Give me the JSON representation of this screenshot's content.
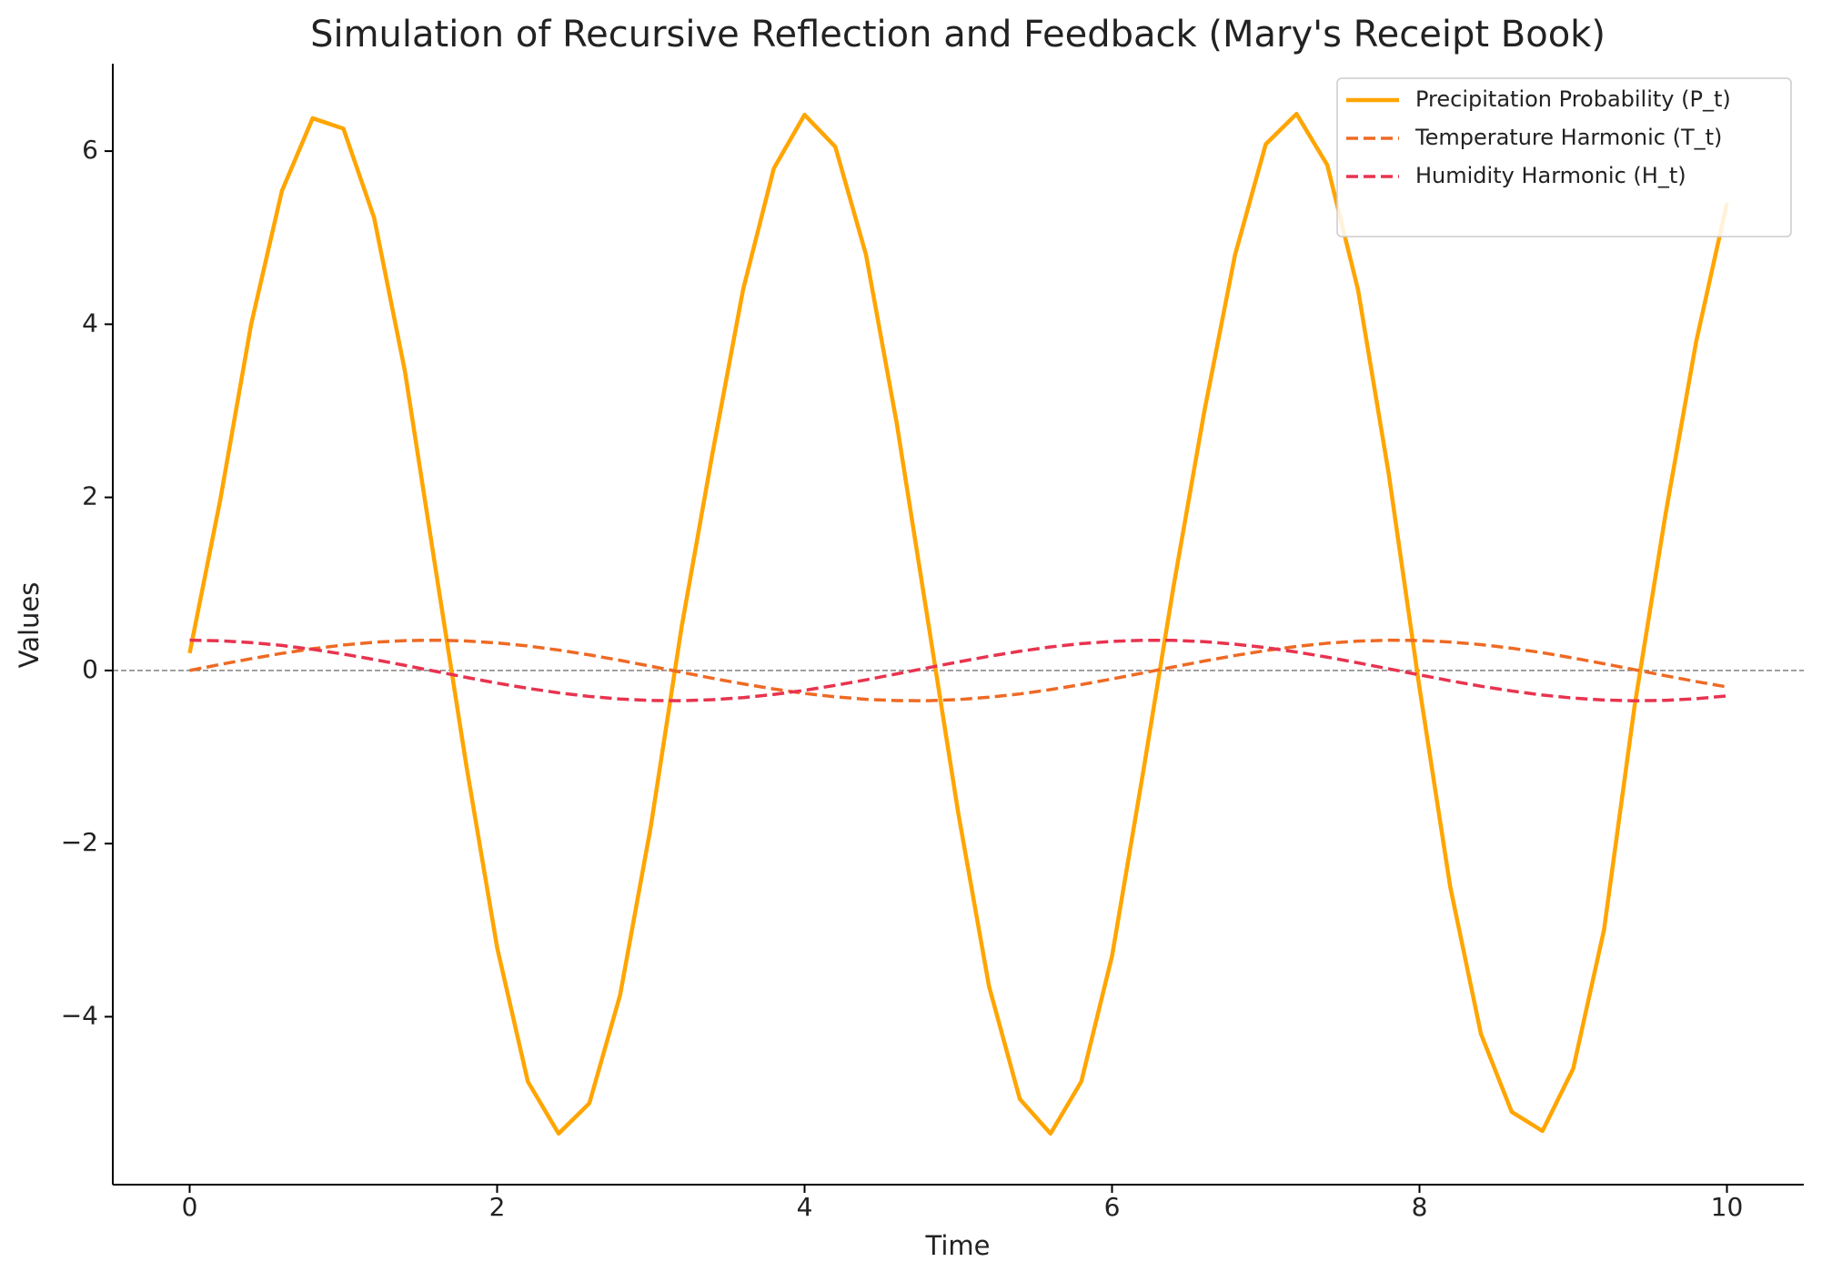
{
  "chart_data": {
    "type": "line",
    "title": "Simulation of Recursive Reflection and Feedback (Mary's Receipt Book)",
    "xlabel": "Time",
    "ylabel": "Values",
    "x": [
      0,
      0.2,
      0.4,
      0.6,
      0.8,
      1.0,
      1.2,
      1.4,
      1.6,
      1.8,
      2.0,
      2.2,
      2.4,
      2.6,
      2.8,
      3.0,
      3.2,
      3.4,
      3.6,
      3.8,
      4.0,
      4.2,
      4.4,
      4.6,
      4.8,
      5.0,
      5.2,
      5.4,
      5.6,
      5.8,
      6.0,
      6.2,
      6.4,
      6.6,
      6.8,
      7.0,
      7.2,
      7.4,
      7.6,
      7.8,
      8.0,
      8.2,
      8.4,
      8.6,
      8.8,
      9.0,
      9.2,
      9.4,
      9.6,
      9.8,
      10.0
    ],
    "series": [
      {
        "name": "Precipitation Probability (P_t)",
        "color": "#FFA500",
        "linestyle": "solid",
        "values": [
          0.2,
          1.98,
          4.0,
          5.54,
          6.38,
          6.26,
          5.23,
          3.46,
          1.17,
          -1.1,
          -3.2,
          -4.75,
          -5.35,
          -5.0,
          -3.75,
          -1.8,
          0.5,
          2.5,
          4.4,
          5.8,
          6.42,
          6.05,
          4.8,
          2.85,
          0.6,
          -1.65,
          -3.65,
          -4.95,
          -5.35,
          -4.75,
          -3.3,
          -1.2,
          0.97,
          2.99,
          4.8,
          6.08,
          6.43,
          5.84,
          4.4,
          2.27,
          -0.2,
          -2.5,
          -4.2,
          -5.1,
          -5.32,
          -4.6,
          -3.0,
          -0.4,
          1.8,
          3.8,
          5.4
        ]
      },
      {
        "name": "Temperature Harmonic (T_t)",
        "color": "#EE6A24",
        "linestyle": "dashed",
        "values": [
          0,
          0.07,
          0.136,
          0.198,
          0.251,
          0.294,
          0.326,
          0.345,
          0.35,
          0.341,
          0.318,
          0.283,
          0.236,
          0.18,
          0.117,
          0.049,
          -0.02,
          -0.09,
          -0.155,
          -0.214,
          -0.265,
          -0.305,
          -0.333,
          -0.348,
          -0.349,
          -0.336,
          -0.309,
          -0.271,
          -0.221,
          -0.163,
          -0.098,
          -0.029,
          0.041,
          0.109,
          0.173,
          0.23,
          0.278,
          0.315,
          0.339,
          0.35,
          0.346,
          0.329,
          0.299,
          0.257,
          0.205,
          0.144,
          0.078,
          0.009,
          -0.061,
          -0.128,
          -0.19
        ]
      },
      {
        "name": "Humidity Harmonic (H_t)",
        "color": "#E8334F",
        "linestyle": "dashed",
        "values": [
          0.35,
          0.343,
          0.322,
          0.289,
          0.244,
          0.189,
          0.127,
          0.059,
          -0.01,
          -0.08,
          -0.146,
          -0.206,
          -0.258,
          -0.3,
          -0.33,
          -0.347,
          -0.349,
          -0.338,
          -0.314,
          -0.277,
          -0.229,
          -0.172,
          -0.108,
          -0.039,
          0.03,
          0.099,
          0.164,
          0.222,
          0.272,
          0.31,
          0.336,
          0.349,
          0.348,
          0.333,
          0.304,
          0.264,
          0.213,
          0.154,
          0.088,
          0.019,
          -0.051,
          -0.119,
          -0.182,
          -0.237,
          -0.284,
          -0.319,
          -0.341,
          -0.35,
          -0.345,
          -0.326,
          -0.294
        ]
      }
    ],
    "xlim": [
      -0.5,
      10.5
    ],
    "ylim": [
      -5.94,
      7.01
    ],
    "xticks": [
      0,
      2,
      4,
      6,
      8,
      10
    ],
    "yticks": [
      {
        "value": -4,
        "label": "−4"
      },
      {
        "value": -2,
        "label": "−2"
      },
      0,
      2,
      4,
      6
    ],
    "hline": 0,
    "legend": "upper right"
  }
}
